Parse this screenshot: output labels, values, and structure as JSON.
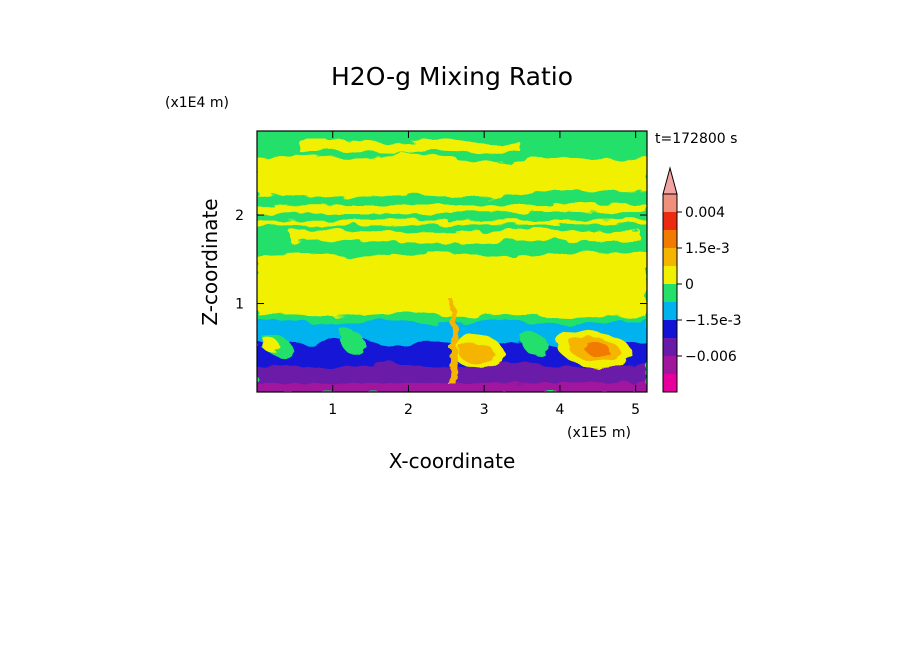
{
  "chart_data": {
    "type": "heatmap",
    "title": "H2O-g Mixing Ratio",
    "xlabel": "X-coordinate",
    "ylabel": "Z-coordinate",
    "x_units": "(x1E5 m)",
    "y_units": "(x1E4 m)",
    "time_label": "t=172800 s",
    "xlim": [
      0,
      5.15
    ],
    "ylim": [
      0,
      2.95
    ],
    "x_ticks": [
      "1",
      "2",
      "3",
      "4",
      "5"
    ],
    "x_tick_values": [
      1,
      2,
      3,
      4,
      5
    ],
    "y_ticks": [
      "1",
      "2"
    ],
    "y_tick_values": [
      1,
      2
    ],
    "grid": false,
    "colorbar": {
      "extend": "max",
      "extend_color": "#f4a3a3",
      "levels": [
        {
          "color": "#e8009e"
        },
        {
          "color": "#a0179e"
        },
        {
          "color": "#6a1aa8"
        },
        {
          "color": "#1212d6"
        },
        {
          "color": "#00b2ee"
        },
        {
          "color": "#22e06a"
        },
        {
          "color": "#f0f000"
        },
        {
          "color": "#f5b400"
        },
        {
          "color": "#f27a00"
        },
        {
          "color": "#ec2a10"
        },
        {
          "color": "#f0907c"
        }
      ],
      "tick_labels": [
        "0.004",
        "1.5e-3",
        "0",
        "−1.5e-3",
        "−0.006"
      ],
      "tick_values": [
        0.004,
        0.0015,
        0,
        -0.0015,
        -0.006
      ]
    }
  }
}
